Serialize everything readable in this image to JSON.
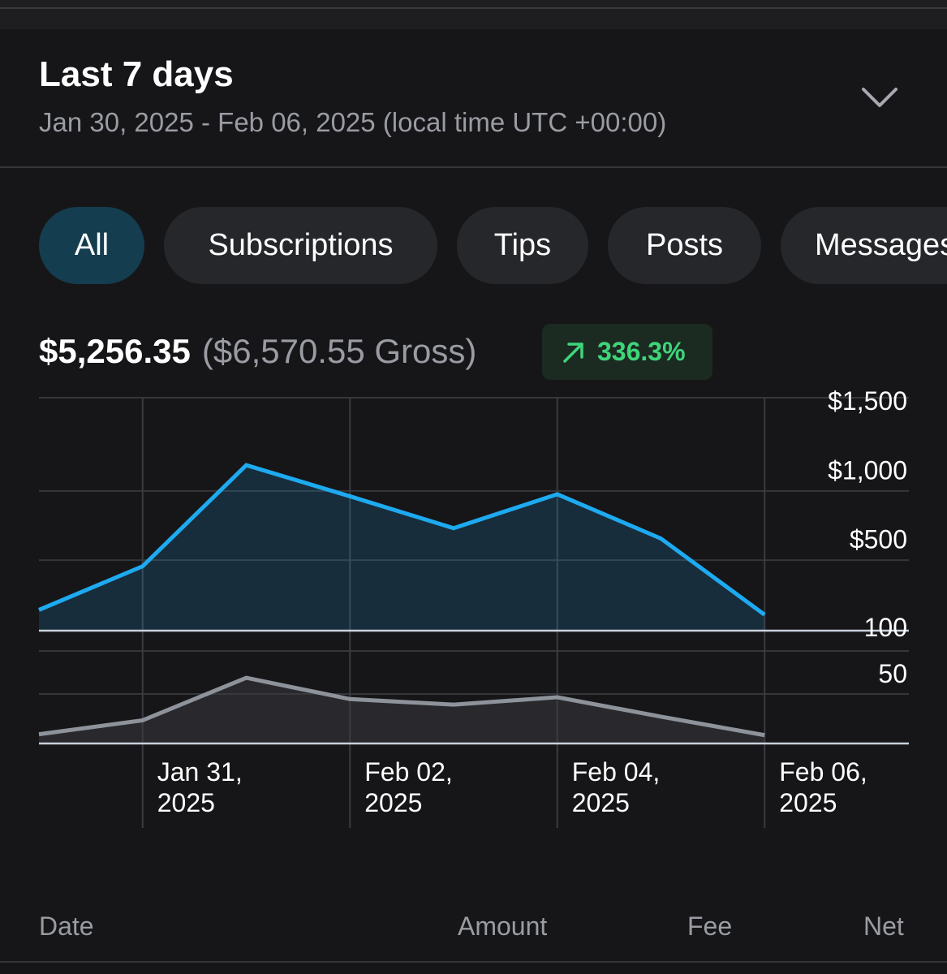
{
  "range": {
    "title": "Last 7 days",
    "subtitle": "Jan 30, 2025 - Feb 06, 2025 (local time UTC +00:00)",
    "toggle_icon": "chevron-down-icon"
  },
  "tabs": [
    {
      "label": "All",
      "active": true
    },
    {
      "label": "Subscriptions",
      "active": false
    },
    {
      "label": "Tips",
      "active": false
    },
    {
      "label": "Posts",
      "active": false
    },
    {
      "label": "Messages",
      "active": false
    }
  ],
  "summary": {
    "net": "$5,256.35",
    "gross": "($6,570.55 Gross)",
    "change": "336.3%",
    "change_icon": "arrow-up-right-icon",
    "change_color": "#3fd57a"
  },
  "table_headers": {
    "date": "Date",
    "amount": "Amount",
    "fee": "Fee",
    "net": "Net"
  },
  "chart_data": [
    {
      "type": "area",
      "x": [
        "2025-01-30",
        "2025-01-30 12:00",
        "2025-01-31",
        "2025-01-31 12:00",
        "2025-02-01",
        "2025-02-01 12:00",
        "2025-02-02",
        "2025-02-02 12:00",
        "2025-02-03",
        "2025-02-03 12:00",
        "2025-02-04",
        "2025-02-04 12:00",
        "2025-02-05",
        "2025-02-05 12:00",
        "2025-02-06",
        "2025-02-06 12:00"
      ],
      "xticks": [
        "2025-01-31",
        "2025-02-02",
        "2025-02-04",
        "2025-02-06"
      ],
      "xtick_labels": [
        [
          "Jan 31,",
          "2025"
        ],
        [
          "Feb 02,",
          "2025"
        ],
        [
          "Feb 04,",
          "2025"
        ],
        [
          "Feb 06,",
          "2025"
        ]
      ],
      "series": [
        {
          "values": [
            150,
            465,
            1195,
            970,
            740,
            985,
            665,
            115
          ],
          "x": [
            "2025-01-30",
            "2025-01-31",
            "2025-02-01",
            "2025-02-02",
            "2025-02-03",
            "2025-02-04",
            "2025-02-05",
            "2025-02-06"
          ],
          "color": "#1eaaf0"
        }
      ],
      "yticks": [
        500,
        1000,
        1500
      ],
      "ytick_labels": [
        "$500",
        "$1,000",
        "$1,500"
      ],
      "ylim": [
        0,
        1500
      ],
      "grid": true
    },
    {
      "type": "area",
      "series": [
        {
          "values": [
            10,
            25,
            71,
            48,
            42,
            50,
            29,
            9
          ],
          "x": [
            "2025-01-30",
            "2025-01-31",
            "2025-02-01",
            "2025-02-02",
            "2025-02-03",
            "2025-02-04",
            "2025-02-05",
            "2025-02-06"
          ],
          "color": "#8e939b"
        }
      ],
      "yticks": [
        50,
        100
      ],
      "ytick_labels": [
        "50",
        "100"
      ],
      "ylim": [
        0,
        100
      ],
      "grid": true
    }
  ]
}
